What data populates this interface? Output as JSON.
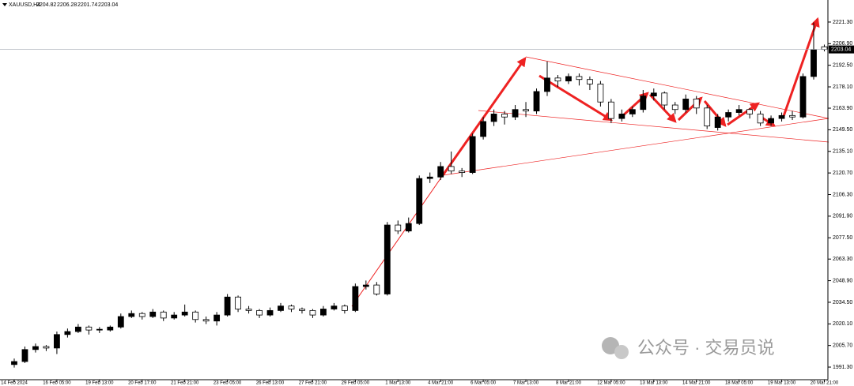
{
  "chart_data": {
    "type": "candlestick",
    "title": "XAUUSD,H4",
    "watermark": "公众号 · 交易员说",
    "categories": [
      "14 Feb 2024",
      null,
      null,
      null,
      "16 Feb 05:00",
      null,
      null,
      null,
      "19 Feb 13:00",
      null,
      null,
      null,
      "20 Feb 17:00",
      null,
      null,
      null,
      "21 Feb 21:00",
      null,
      null,
      null,
      "23 Feb 05:00",
      null,
      null,
      null,
      "26 Feb 13:00",
      null,
      null,
      null,
      "27 Feb 21:00",
      null,
      null,
      null,
      "29 Feb 05:00",
      null,
      null,
      null,
      "1 Mar 13:00",
      null,
      null,
      null,
      "4 Mar 21:00",
      null,
      null,
      null,
      "6 Mar 05:00",
      null,
      null,
      null,
      "7 Mar 13:00",
      null,
      null,
      null,
      "8 Mar 21:00",
      null,
      null,
      null,
      "12 Mar 05:00",
      null,
      null,
      null,
      "13 Mar 13:00",
      null,
      null,
      null,
      "14 Mar 21:00",
      null,
      null,
      null,
      "18 Mar 05:00",
      null,
      null,
      null,
      "19 Mar 13:00",
      null,
      null,
      null,
      "20 Mar 21:00"
    ],
    "open": [
      1993,
      1995,
      2003,
      2005,
      2004,
      2013,
      2015,
      2018,
      2016,
      2016,
      2018,
      2025,
      2027,
      2025,
      2028,
      2024,
      2026,
      2028,
      2023,
      2022,
      2026,
      2038,
      2030,
      2029,
      2026,
      2029,
      2032,
      2030,
      2029,
      2026,
      2030,
      2032,
      2029,
      2045,
      2046,
      2040,
      2086,
      2082,
      2087,
      2117,
      2118,
      2125,
      2122,
      2121,
      2145,
      2155,
      2160,
      2158,
      2163,
      2162,
      2175,
      2184,
      2182,
      2185,
      2183,
      2180,
      2168,
      2157,
      2160,
      2163,
      2172,
      2174,
      2166,
      2163,
      2170,
      2164,
      2151,
      2158,
      2161,
      2163,
      2160,
      2154,
      2157,
      2159,
      2158,
      2185,
      2204.82
    ],
    "high": [
      1997,
      2005,
      2007,
      2006,
      2015,
      2017,
      2020,
      2019,
      2018,
      2019,
      2027,
      2029,
      2028,
      2030,
      2029,
      2028,
      2033,
      2029,
      2025,
      2028,
      2040,
      2039,
      2032,
      2030,
      2031,
      2034,
      2033,
      2031,
      2030,
      2032,
      2034,
      2033,
      2047,
      2049,
      2048,
      2088,
      2089,
      2091,
      2119,
      2121,
      2128,
      2135,
      2124,
      2147,
      2158,
      2163,
      2162,
      2166,
      2168,
      2177,
      2195,
      2186,
      2187,
      2187,
      2185,
      2182,
      2170,
      2163,
      2165,
      2176,
      2177,
      2175,
      2168,
      2173,
      2172,
      2166,
      2160,
      2163,
      2166,
      2164,
      2162,
      2159,
      2161,
      2162,
      2187,
      2221,
      2206.28
    ],
    "low": [
      1991,
      1994,
      2001,
      2002,
      2000,
      2011,
      2014,
      2013,
      2014,
      2015,
      2017,
      2024,
      2023,
      2024,
      2022,
      2023,
      2025,
      2021,
      2020,
      2019,
      2025,
      2028,
      2027,
      2024,
      2025,
      2028,
      2028,
      2027,
      2024,
      2025,
      2029,
      2027,
      2028,
      2043,
      2039,
      2039,
      2080,
      2081,
      2086,
      2114,
      2116,
      2120,
      2118,
      2120,
      2143,
      2152,
      2153,
      2156,
      2158,
      2160,
      2172,
      2178,
      2180,
      2179,
      2176,
      2165,
      2154,
      2155,
      2158,
      2161,
      2169,
      2163,
      2160,
      2161,
      2160,
      2150,
      2149,
      2155,
      2159,
      2157,
      2152,
      2152,
      2155,
      2156,
      2157,
      2183,
      2201.74
    ],
    "close": [
      1995,
      2003,
      2005,
      2004,
      2013,
      2015,
      2018,
      2016,
      2016.5,
      2018,
      2025,
      2027,
      2025,
      2028,
      2024,
      2026,
      2028,
      2023,
      2022,
      2026,
      2038,
      2030,
      2029,
      2026,
      2029,
      2032,
      2030,
      2029,
      2026,
      2030,
      2032,
      2029,
      2045,
      2046,
      2040,
      2086,
      2082,
      2087,
      2117,
      2118,
      2125,
      2122,
      2121,
      2145,
      2155,
      2160,
      2158,
      2163,
      2162,
      2175,
      2184,
      2182,
      2185,
      2183,
      2180,
      2168,
      2157,
      2160,
      2163,
      2172,
      2174,
      2166,
      2163,
      2170,
      2164,
      2152,
      2158,
      2161,
      2163,
      2160,
      2154,
      2157,
      2159,
      2158,
      2185,
      2203,
      2203.04
    ],
    "up_color": "#000000",
    "down_color": "#ffffff",
    "ylim": [
      1982.9,
      2236.0
    ],
    "yticks": [
      {
        "value": 1991.3,
        "label": "1991.30"
      },
      {
        "value": 2005.7,
        "label": "2005.70"
      },
      {
        "value": 2020.1,
        "label": "2020.10"
      },
      {
        "value": 2034.5,
        "label": "2034.50"
      },
      {
        "value": 2048.9,
        "label": "2048.90"
      },
      {
        "value": 2063.3,
        "label": "2063.30"
      },
      {
        "value": 2077.5,
        "label": "2077.50"
      },
      {
        "value": 2091.9,
        "label": "2091.90"
      },
      {
        "value": 2106.3,
        "label": "2106.30"
      },
      {
        "value": 2120.7,
        "label": "2120.70"
      },
      {
        "value": 2135.1,
        "label": "2135.10"
      },
      {
        "value": 2149.5,
        "label": "2149.50"
      },
      {
        "value": 2163.9,
        "label": "2163.90"
      },
      {
        "value": 2178.1,
        "label": "2178.10"
      },
      {
        "value": 2192.5,
        "label": "2192.50"
      },
      {
        "value": 2206.9,
        "label": "2206.90"
      },
      {
        "value": 2221.3,
        "label": "2221.30"
      }
    ],
    "grid": false
  }
}
